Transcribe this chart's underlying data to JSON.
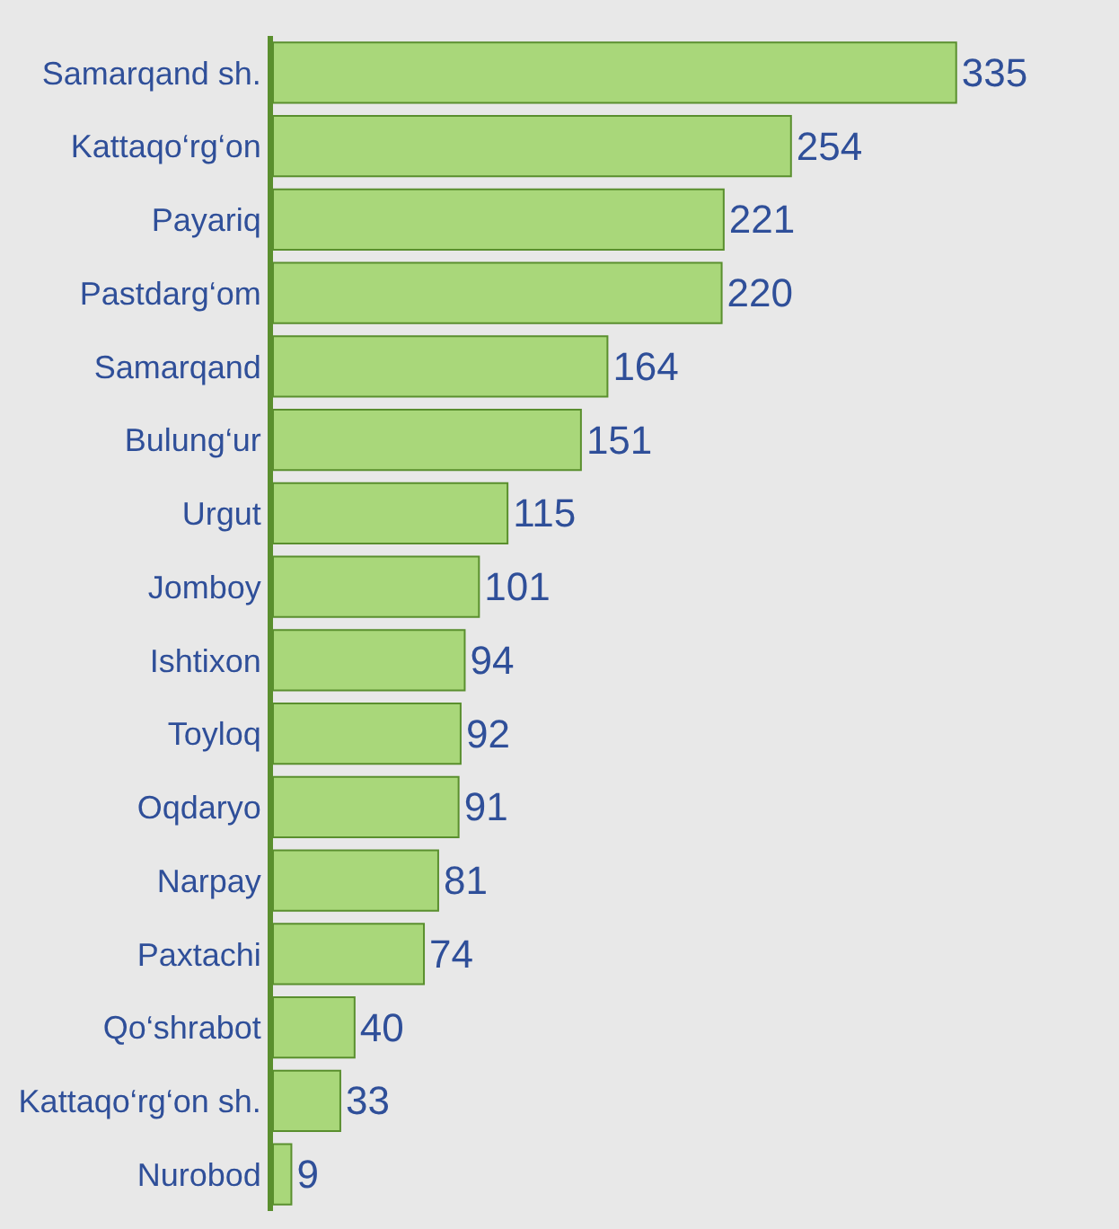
{
  "chart_data": {
    "type": "bar",
    "orientation": "horizontal",
    "categories": [
      "Samarqand sh.",
      "Kattaqo‘rg‘on",
      "Payariq",
      "Pastdarg‘om",
      "Samarqand",
      "Bulung‘ur",
      "Urgut",
      "Jomboy",
      "Ishtixon",
      "Toyloq",
      "Oqdaryo",
      "Narpay",
      "Paxtachi",
      "Qo‘shrabot",
      "Kattaqo‘rg‘on sh.",
      "Nurobod"
    ],
    "values": [
      335,
      254,
      221,
      220,
      164,
      151,
      115,
      101,
      94,
      92,
      91,
      81,
      74,
      40,
      33,
      9
    ],
    "color": "#a9d77a",
    "data_labels": true
  }
}
